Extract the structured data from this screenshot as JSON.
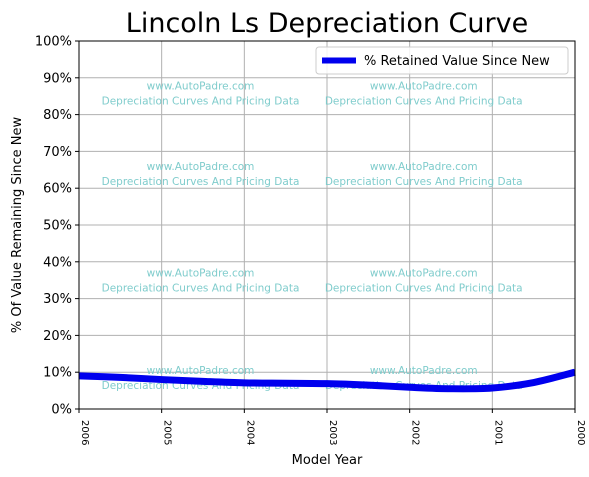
{
  "chart_data": {
    "type": "line",
    "title": "Lincoln Ls Depreciation Curve",
    "xlabel": "Model Year",
    "ylabel": "% Of Value Remaining Since New",
    "x": [
      2006,
      2005,
      2004,
      2003,
      2002,
      2001,
      2000
    ],
    "x_tick_labels": [
      "2006",
      "2005",
      "2004",
      "2003",
      "2002",
      "2001",
      "2000"
    ],
    "y_tick_labels": [
      "0%",
      "10%",
      "20%",
      "30%",
      "40%",
      "50%",
      "60%",
      "70%",
      "80%",
      "90%",
      "100%"
    ],
    "ylim": [
      0,
      100
    ],
    "xlim": [
      2006,
      2000
    ],
    "grid": true,
    "legend_position": "top-right",
    "series": [
      {
        "name": "% Retained Value Since New",
        "color": "#0000ee",
        "x": [
          2006,
          2005.5,
          2005,
          2004.5,
          2004,
          2003.5,
          2003,
          2002.5,
          2002,
          2001.5,
          2001,
          2000.5,
          2000
        ],
        "values": [
          9.0,
          8.6,
          8.0,
          7.5,
          7.1,
          7.0,
          6.9,
          6.5,
          5.9,
          5.5,
          5.7,
          7.2,
          10.0
        ]
      }
    ]
  },
  "watermark": {
    "line1": "www.AutoPadre.com",
    "line2": "Depreciation Curves And Pricing Data"
  },
  "colors": {
    "line": "#0000ee",
    "grid": "#b0b0b0",
    "watermark": "#7fcccc"
  }
}
